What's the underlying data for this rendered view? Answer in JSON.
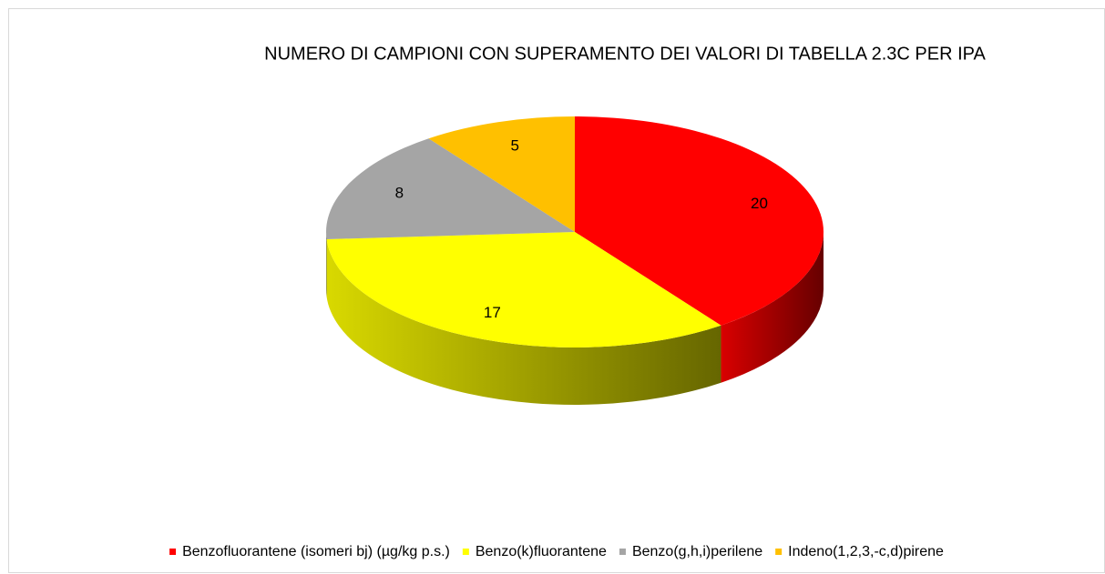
{
  "chart_data": {
    "type": "pie3d",
    "title": "NUMERO DI CAMPIONI CON SUPERAMENTO DEI VALORI DI TABELLA 2.3C PER IPA",
    "categories": [
      "Benzofluorantene (isomeri bj) (µg/kg p.s.)",
      "Benzo(k)fluorantene",
      "Benzo(g,h,i)perilene",
      "Indeno(1,2,3,-c,d)pirene"
    ],
    "values": [
      20,
      17,
      8,
      5
    ],
    "colors": [
      "#ff0000",
      "#ffff00",
      "#a5a5a5",
      "#ffc000"
    ],
    "legend": "bottom"
  }
}
